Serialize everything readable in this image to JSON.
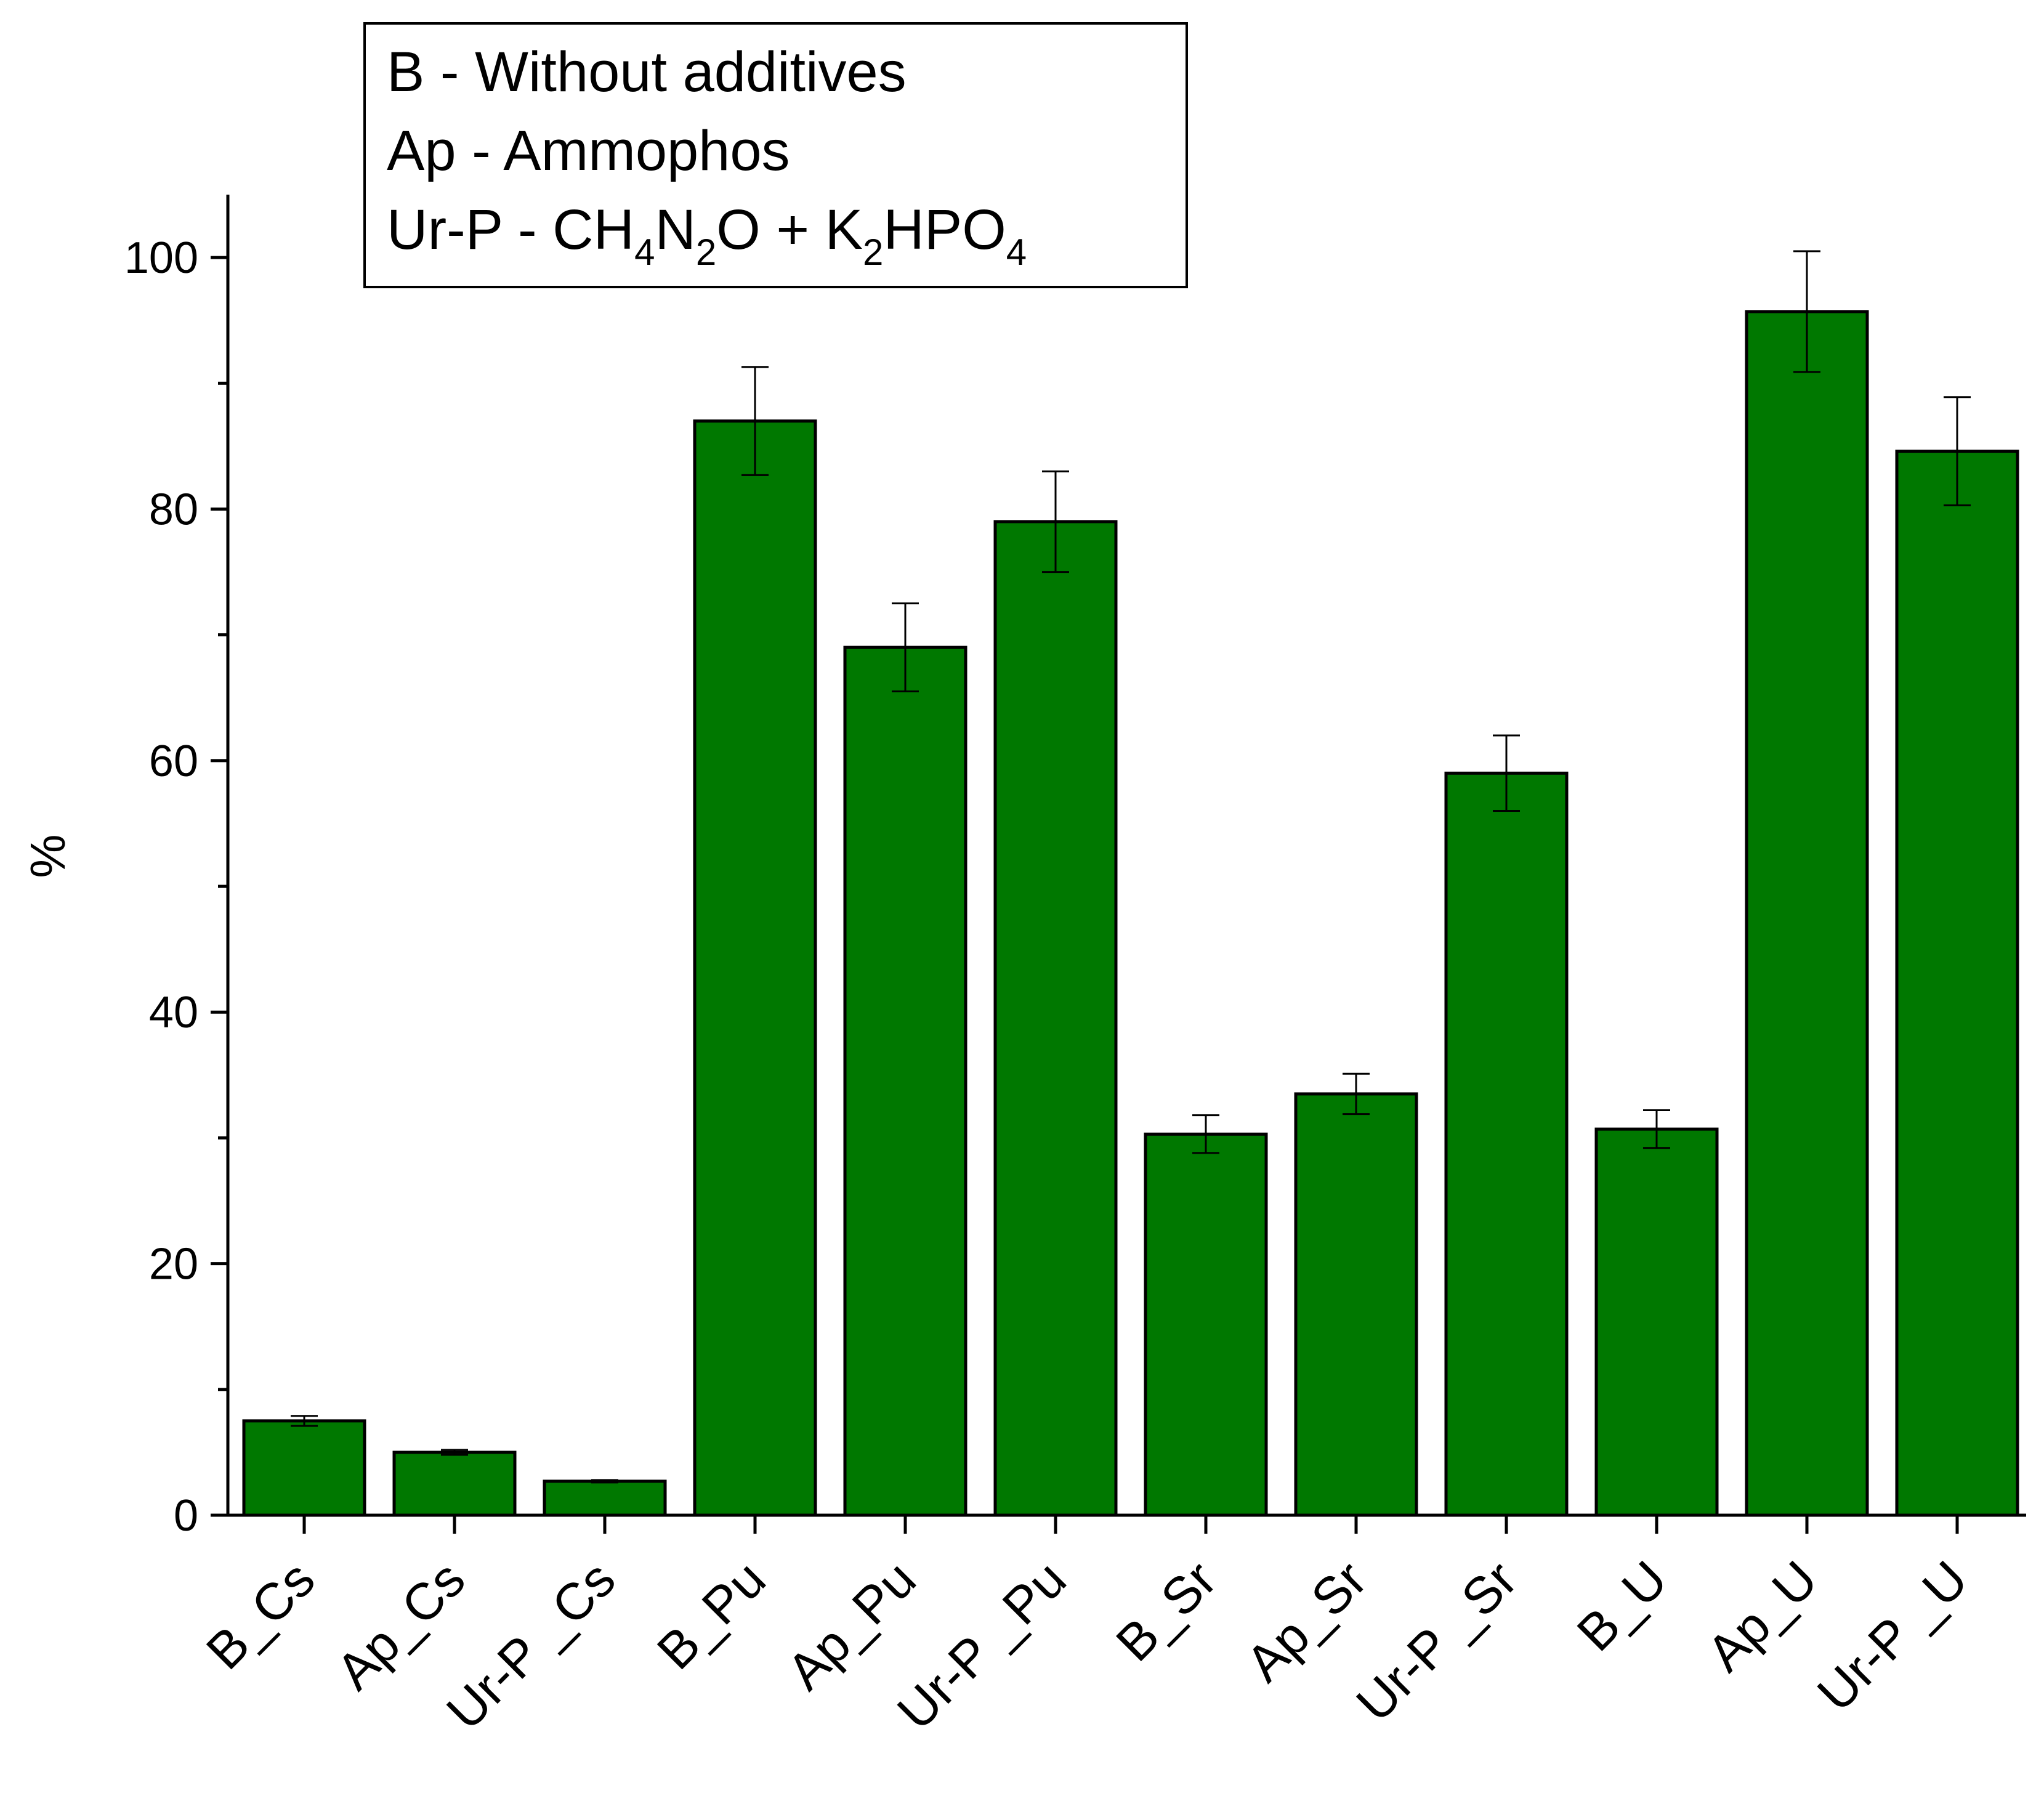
{
  "chart_data": {
    "type": "bar",
    "categories": [
      "B_Cs",
      "Ap_Cs",
      "Ur-P _Cs",
      "B_Pu",
      "Ap_Pu",
      "Ur-P _Pu",
      "B_Sr",
      "Ap_Sr",
      "Ur-P _Sr",
      "B_U",
      "Ap_U",
      "Ur-P _U"
    ],
    "values": [
      7.5,
      5.0,
      2.7,
      87.0,
      69.0,
      79.0,
      30.3,
      33.5,
      59.0,
      30.7,
      95.7,
      84.6
    ],
    "errors": [
      0.4,
      0.2,
      0.1,
      4.3,
      3.5,
      4.0,
      1.5,
      1.6,
      3.0,
      1.5,
      4.8,
      4.3
    ],
    "ylabel": "%",
    "xlabel": "",
    "ylim": [
      0,
      105
    ],
    "yticks": [
      0,
      20,
      40,
      60,
      80,
      100
    ],
    "bar_color": "#007800",
    "grid": false,
    "legend_placement": "top-center",
    "legend": [
      {
        "text": "B - Without additives"
      },
      {
        "text": "Ap - Ammophos"
      },
      {
        "parts": [
          {
            "t": "Ur-P - CH"
          },
          {
            "sub": "4"
          },
          {
            "t": "N"
          },
          {
            "sub": "2"
          },
          {
            "t": "O + K"
          },
          {
            "sub": "2"
          },
          {
            "t": "HPO"
          },
          {
            "sub": "4"
          }
        ]
      }
    ]
  }
}
